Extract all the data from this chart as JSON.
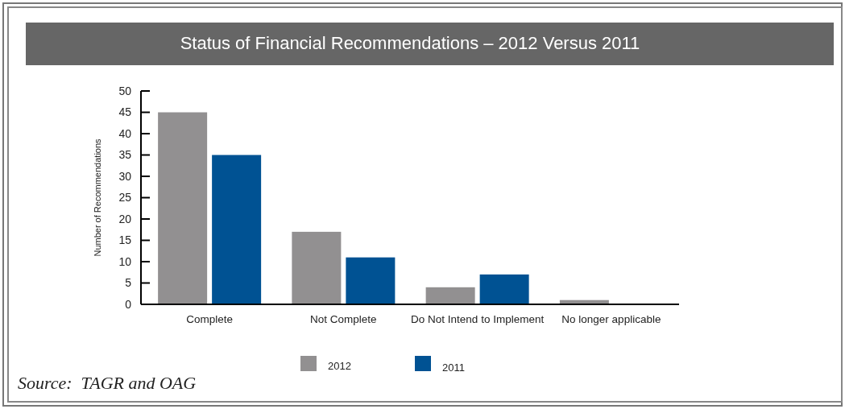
{
  "chart_data": {
    "type": "bar",
    "title": "Status of Financial Recommendations – 2012 Versus 2011",
    "ylabel": "Number of Recommendations",
    "categories": [
      "Complete",
      "Not Complete",
      "Do Not Intend to Implement",
      "No longer applicable"
    ],
    "series": [
      {
        "name": "2012",
        "color": "#929091",
        "values": [
          45,
          17,
          4,
          1
        ]
      },
      {
        "name": "2011",
        "color": "#005293",
        "values": [
          35,
          11,
          7,
          0
        ]
      }
    ],
    "ylim": [
      0,
      50
    ],
    "yticks": [
      0,
      5,
      10,
      15,
      20,
      25,
      30,
      35,
      40,
      45,
      50
    ],
    "grid": false,
    "legend": "bottom",
    "annotations": [
      "Source:  TAGR and OAG"
    ]
  }
}
